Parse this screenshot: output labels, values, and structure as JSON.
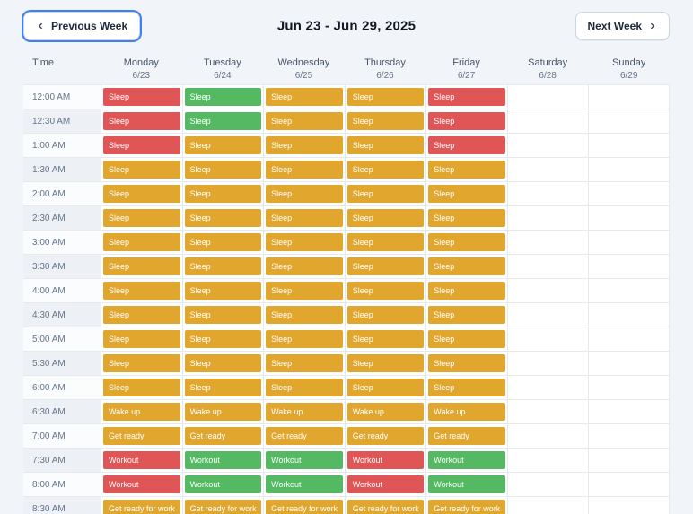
{
  "header": {
    "prev_label": "Previous Week",
    "title": "Jun 23 - Jun 29, 2025",
    "next_label": "Next Week"
  },
  "icons": {
    "previous": "chevron-left",
    "next": "chevron-right"
  },
  "colors": {
    "red": "#e05656",
    "green": "#55b963",
    "yellow": "#e0a62e",
    "focus": "#3b82f6"
  },
  "table": {
    "time_header": "Time",
    "days": [
      {
        "name": "Monday",
        "date": "6/23"
      },
      {
        "name": "Tuesday",
        "date": "6/24"
      },
      {
        "name": "Wednesday",
        "date": "6/25"
      },
      {
        "name": "Thursday",
        "date": "6/26"
      },
      {
        "name": "Friday",
        "date": "6/27"
      },
      {
        "name": "Saturday",
        "date": "6/28"
      },
      {
        "name": "Sunday",
        "date": "6/29"
      }
    ],
    "rows": [
      {
        "time": "12:00 AM",
        "events": [
          {
            "label": "Sleep",
            "color": "red"
          },
          {
            "label": "Sleep",
            "color": "green"
          },
          {
            "label": "Sleep",
            "color": "yellow"
          },
          {
            "label": "Sleep",
            "color": "yellow"
          },
          {
            "label": "Sleep",
            "color": "red"
          },
          null,
          null
        ]
      },
      {
        "time": "12:30 AM",
        "events": [
          {
            "label": "Sleep",
            "color": "red"
          },
          {
            "label": "Sleep",
            "color": "green"
          },
          {
            "label": "Sleep",
            "color": "yellow"
          },
          {
            "label": "Sleep",
            "color": "yellow"
          },
          {
            "label": "Sleep",
            "color": "red"
          },
          null,
          null
        ]
      },
      {
        "time": "1:00 AM",
        "events": [
          {
            "label": "Sleep",
            "color": "red"
          },
          {
            "label": "Sleep",
            "color": "yellow"
          },
          {
            "label": "Sleep",
            "color": "yellow"
          },
          {
            "label": "Sleep",
            "color": "yellow"
          },
          {
            "label": "Sleep",
            "color": "red"
          },
          null,
          null
        ]
      },
      {
        "time": "1:30 AM",
        "events": [
          {
            "label": "Sleep",
            "color": "yellow"
          },
          {
            "label": "Sleep",
            "color": "yellow"
          },
          {
            "label": "Sleep",
            "color": "yellow"
          },
          {
            "label": "Sleep",
            "color": "yellow"
          },
          {
            "label": "Sleep",
            "color": "yellow"
          },
          null,
          null
        ]
      },
      {
        "time": "2:00 AM",
        "events": [
          {
            "label": "Sleep",
            "color": "yellow"
          },
          {
            "label": "Sleep",
            "color": "yellow"
          },
          {
            "label": "Sleep",
            "color": "yellow"
          },
          {
            "label": "Sleep",
            "color": "yellow"
          },
          {
            "label": "Sleep",
            "color": "yellow"
          },
          null,
          null
        ]
      },
      {
        "time": "2:30 AM",
        "events": [
          {
            "label": "Sleep",
            "color": "yellow"
          },
          {
            "label": "Sleep",
            "color": "yellow"
          },
          {
            "label": "Sleep",
            "color": "yellow"
          },
          {
            "label": "Sleep",
            "color": "yellow"
          },
          {
            "label": "Sleep",
            "color": "yellow"
          },
          null,
          null
        ]
      },
      {
        "time": "3:00 AM",
        "events": [
          {
            "label": "Sleep",
            "color": "yellow"
          },
          {
            "label": "Sleep",
            "color": "yellow"
          },
          {
            "label": "Sleep",
            "color": "yellow"
          },
          {
            "label": "Sleep",
            "color": "yellow"
          },
          {
            "label": "Sleep",
            "color": "yellow"
          },
          null,
          null
        ]
      },
      {
        "time": "3:30 AM",
        "events": [
          {
            "label": "Sleep",
            "color": "yellow"
          },
          {
            "label": "Sleep",
            "color": "yellow"
          },
          {
            "label": "Sleep",
            "color": "yellow"
          },
          {
            "label": "Sleep",
            "color": "yellow"
          },
          {
            "label": "Sleep",
            "color": "yellow"
          },
          null,
          null
        ]
      },
      {
        "time": "4:00 AM",
        "events": [
          {
            "label": "Sleep",
            "color": "yellow"
          },
          {
            "label": "Sleep",
            "color": "yellow"
          },
          {
            "label": "Sleep",
            "color": "yellow"
          },
          {
            "label": "Sleep",
            "color": "yellow"
          },
          {
            "label": "Sleep",
            "color": "yellow"
          },
          null,
          null
        ]
      },
      {
        "time": "4:30 AM",
        "events": [
          {
            "label": "Sleep",
            "color": "yellow"
          },
          {
            "label": "Sleep",
            "color": "yellow"
          },
          {
            "label": "Sleep",
            "color": "yellow"
          },
          {
            "label": "Sleep",
            "color": "yellow"
          },
          {
            "label": "Sleep",
            "color": "yellow"
          },
          null,
          null
        ]
      },
      {
        "time": "5:00 AM",
        "events": [
          {
            "label": "Sleep",
            "color": "yellow"
          },
          {
            "label": "Sleep",
            "color": "yellow"
          },
          {
            "label": "Sleep",
            "color": "yellow"
          },
          {
            "label": "Sleep",
            "color": "yellow"
          },
          {
            "label": "Sleep",
            "color": "yellow"
          },
          null,
          null
        ]
      },
      {
        "time": "5:30 AM",
        "events": [
          {
            "label": "Sleep",
            "color": "yellow"
          },
          {
            "label": "Sleep",
            "color": "yellow"
          },
          {
            "label": "Sleep",
            "color": "yellow"
          },
          {
            "label": "Sleep",
            "color": "yellow"
          },
          {
            "label": "Sleep",
            "color": "yellow"
          },
          null,
          null
        ]
      },
      {
        "time": "6:00 AM",
        "events": [
          {
            "label": "Sleep",
            "color": "yellow"
          },
          {
            "label": "Sleep",
            "color": "yellow"
          },
          {
            "label": "Sleep",
            "color": "yellow"
          },
          {
            "label": "Sleep",
            "color": "yellow"
          },
          {
            "label": "Sleep",
            "color": "yellow"
          },
          null,
          null
        ]
      },
      {
        "time": "6:30 AM",
        "events": [
          {
            "label": "Wake up",
            "color": "yellow"
          },
          {
            "label": "Wake up",
            "color": "yellow"
          },
          {
            "label": "Wake up",
            "color": "yellow"
          },
          {
            "label": "Wake up",
            "color": "yellow"
          },
          {
            "label": "Wake up",
            "color": "yellow"
          },
          null,
          null
        ]
      },
      {
        "time": "7:00 AM",
        "events": [
          {
            "label": "Get ready",
            "color": "yellow"
          },
          {
            "label": "Get ready",
            "color": "yellow"
          },
          {
            "label": "Get ready",
            "color": "yellow"
          },
          {
            "label": "Get ready",
            "color": "yellow"
          },
          {
            "label": "Get ready",
            "color": "yellow"
          },
          null,
          null
        ]
      },
      {
        "time": "7:30 AM",
        "events": [
          {
            "label": "Workout",
            "color": "red"
          },
          {
            "label": "Workout",
            "color": "green"
          },
          {
            "label": "Workout",
            "color": "green"
          },
          {
            "label": "Workout",
            "color": "red"
          },
          {
            "label": "Workout",
            "color": "green"
          },
          null,
          null
        ]
      },
      {
        "time": "8:00 AM",
        "events": [
          {
            "label": "Workout",
            "color": "red"
          },
          {
            "label": "Workout",
            "color": "green"
          },
          {
            "label": "Workout",
            "color": "green"
          },
          {
            "label": "Workout",
            "color": "red"
          },
          {
            "label": "Workout",
            "color": "green"
          },
          null,
          null
        ]
      },
      {
        "time": "8:30 AM",
        "events": [
          {
            "label": "Get ready for work",
            "color": "yellow"
          },
          {
            "label": "Get ready for work",
            "color": "yellow"
          },
          {
            "label": "Get ready for work",
            "color": "yellow"
          },
          {
            "label": "Get ready for work",
            "color": "yellow"
          },
          {
            "label": "Get ready for work",
            "color": "yellow"
          },
          null,
          null
        ]
      }
    ]
  }
}
